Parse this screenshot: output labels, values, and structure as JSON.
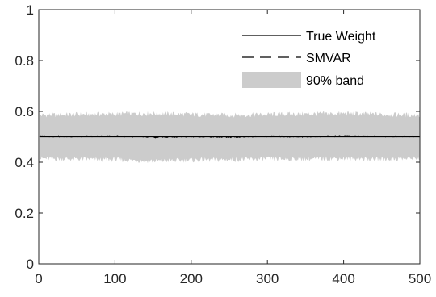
{
  "chart_data": {
    "type": "line",
    "title": "",
    "xlabel": "",
    "ylabel": "",
    "xlim": [
      0,
      500
    ],
    "ylim": [
      0,
      1
    ],
    "xticks": [
      0,
      100,
      200,
      300,
      400,
      500
    ],
    "yticks": [
      0,
      0.2,
      0.4,
      0.6,
      0.8,
      1
    ],
    "xtick_labels": [
      "0",
      "100",
      "200",
      "300",
      "400",
      "500"
    ],
    "ytick_labels": [
      "0",
      "0.2",
      "0.4",
      "0.6",
      "0.8",
      "1"
    ],
    "grid": false,
    "legend_position": "top-right",
    "legend": [
      {
        "label": "True Weight",
        "style": "solid"
      },
      {
        "label": "SMVAR",
        "style": "dashed"
      },
      {
        "label": "90% band",
        "style": "fill"
      }
    ],
    "series": [
      {
        "name": "True Weight",
        "style": "solid",
        "color": "#000000",
        "constant": 0.5
      },
      {
        "name": "SMVAR",
        "style": "dashed",
        "color": "#000000",
        "x": [
          0,
          50,
          100,
          150,
          200,
          250,
          300,
          350,
          400,
          450,
          500
        ],
        "y": [
          0.502,
          0.501,
          0.503,
          0.498,
          0.501,
          0.499,
          0.502,
          0.5,
          0.503,
          0.501,
          0.502
        ]
      },
      {
        "name": "90% band",
        "type": "band",
        "color": "#cccccc",
        "x": [
          0,
          50,
          100,
          150,
          200,
          250,
          300,
          350,
          400,
          450,
          500
        ],
        "lower": [
          0.415,
          0.412,
          0.41,
          0.405,
          0.408,
          0.41,
          0.413,
          0.412,
          0.415,
          0.412,
          0.415
        ],
        "upper": [
          0.585,
          0.588,
          0.59,
          0.592,
          0.588,
          0.585,
          0.588,
          0.59,
          0.592,
          0.588,
          0.585
        ]
      }
    ]
  }
}
